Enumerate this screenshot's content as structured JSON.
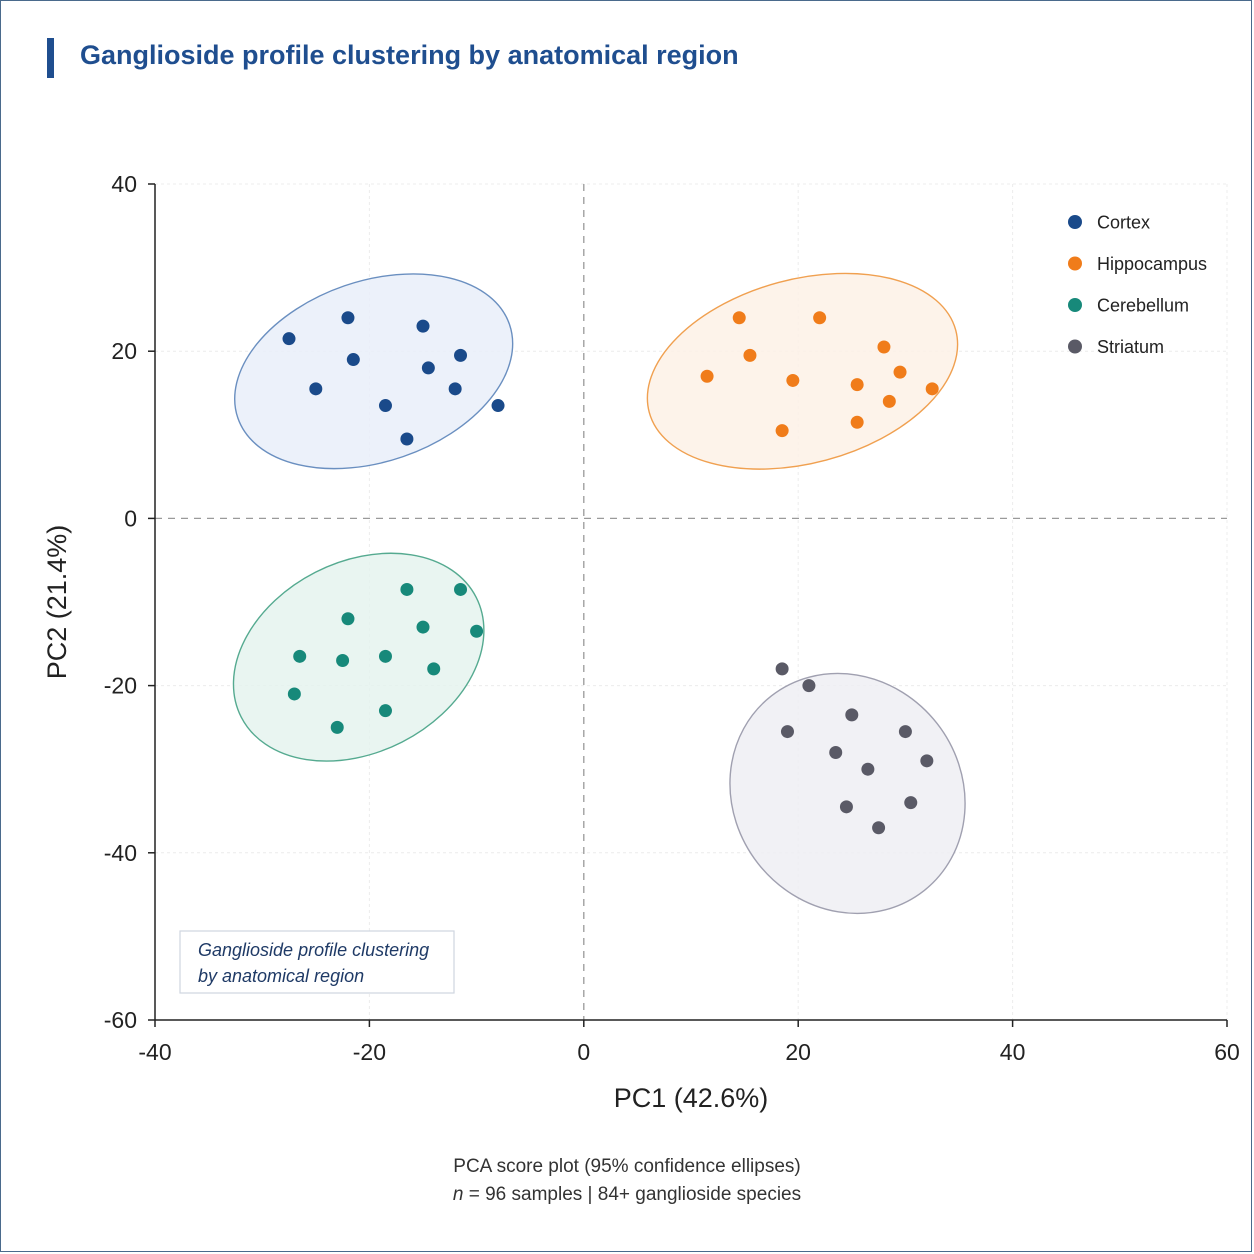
{
  "page": {
    "title": "Ganglioside profile clustering by anatomical region",
    "footer_line1": "PCA score plot (95% confidence ellipses)",
    "footer_line2_n": "n",
    "footer_line2_rest": " = 96 samples | 84+ ganglioside species"
  },
  "chart_data": {
    "type": "scatter",
    "xlabel": "PC1 (42.6%)",
    "ylabel": "PC2 (21.4%)",
    "xlim": [
      -40,
      60
    ],
    "ylim": [
      -60,
      40
    ],
    "xticks": [
      -40,
      -20,
      0,
      20,
      40,
      60
    ],
    "yticks": [
      40,
      20,
      0,
      -20,
      -40,
      -60
    ],
    "grid": true,
    "legend_position": "top-right",
    "annotation": [
      "Ganglioside profile clustering",
      "by anatomical region"
    ],
    "series": [
      {
        "name": "Cortex",
        "color": "#1a4a8a",
        "fill": "#e9eff9",
        "stroke": "#6a8fc0",
        "ellipse": {
          "cx": -19.6,
          "cy": 17.6,
          "rx": 13.4,
          "ry": 10.8,
          "angle": -19
        },
        "points": [
          [
            -27.5,
            21.5
          ],
          [
            -22.0,
            24.0
          ],
          [
            -21.5,
            19.0
          ],
          [
            -25.0,
            15.5
          ],
          [
            -18.5,
            13.5
          ],
          [
            -15.0,
            23.0
          ],
          [
            -14.5,
            18.0
          ],
          [
            -12.0,
            15.5
          ],
          [
            -11.5,
            19.5
          ],
          [
            -8.0,
            13.5
          ],
          [
            -16.5,
            9.5
          ]
        ]
      },
      {
        "name": "Hippocampus",
        "color": "#f07c1a",
        "fill": "#fdf1e6",
        "stroke": "#f0a050",
        "ellipse": {
          "cx": 20.4,
          "cy": 17.6,
          "rx": 14.8,
          "ry": 11.0,
          "angle": -15
        },
        "points": [
          [
            14.5,
            24.0
          ],
          [
            22.0,
            24.0
          ],
          [
            15.5,
            19.5
          ],
          [
            11.5,
            17.0
          ],
          [
            19.5,
            16.5
          ],
          [
            25.5,
            16.0
          ],
          [
            28.0,
            20.5
          ],
          [
            29.5,
            17.5
          ],
          [
            32.5,
            15.5
          ],
          [
            28.5,
            14.0
          ],
          [
            25.5,
            11.5
          ],
          [
            18.5,
            10.5
          ]
        ]
      },
      {
        "name": "Cerebellum",
        "color": "#17897a",
        "fill": "#e5f3ee",
        "stroke": "#55aa90",
        "ellipse": {
          "cx": -21.0,
          "cy": -16.6,
          "rx": 12.3,
          "ry": 11.4,
          "angle": -27
        },
        "points": [
          [
            -16.5,
            -8.5
          ],
          [
            -11.5,
            -8.5
          ],
          [
            -22.0,
            -12.0
          ],
          [
            -15.0,
            -13.0
          ],
          [
            -10.0,
            -13.5
          ],
          [
            -26.5,
            -16.5
          ],
          [
            -22.5,
            -17.0
          ],
          [
            -18.5,
            -16.5
          ],
          [
            -14.0,
            -18.0
          ],
          [
            -27.0,
            -21.0
          ],
          [
            -18.5,
            -23.0
          ],
          [
            -23.0,
            -25.0
          ]
        ]
      },
      {
        "name": "Striatum",
        "color": "#5a5a66",
        "fill": "#eeeef3",
        "stroke": "#a0a0b0",
        "ellipse": {
          "cx": 24.6,
          "cy": -32.9,
          "rx": 10.6,
          "ry": 14.8,
          "angle": -38
        },
        "points": [
          [
            18.5,
            -18.0
          ],
          [
            21.0,
            -20.0
          ],
          [
            25.0,
            -23.5
          ],
          [
            19.0,
            -25.5
          ],
          [
            30.0,
            -25.5
          ],
          [
            23.5,
            -28.0
          ],
          [
            26.5,
            -30.0
          ],
          [
            32.0,
            -29.0
          ],
          [
            24.5,
            -34.5
          ],
          [
            30.5,
            -34.0
          ],
          [
            27.5,
            -37.0
          ]
        ]
      }
    ]
  }
}
